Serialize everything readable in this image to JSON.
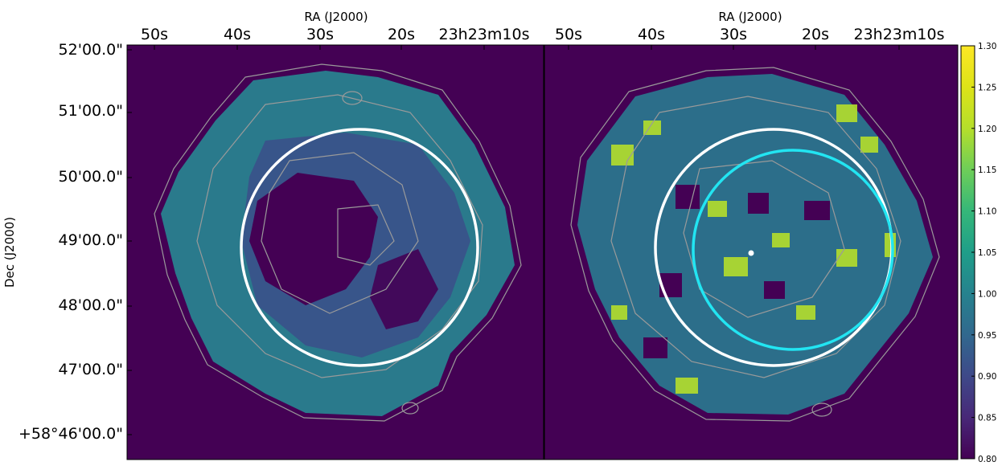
{
  "chart_data": [
    {
      "type": "heatmap",
      "panel": "left",
      "xlabel": "RA (J2000)",
      "ylabel": "Dec (J2000)",
      "x_ticks": [
        "50s",
        "40s",
        "30s",
        "20s",
        "23h23m10s"
      ],
      "y_ticks": [
        "52'00.0\"",
        "51'00.0\"",
        "50'00.0\"",
        "49'00.0\"",
        "48'00.0\"",
        "47'00.0\"",
        "+58°46'00.0\""
      ],
      "overlays": [
        {
          "shape": "circle",
          "color": "#ffffff"
        }
      ],
      "contours": {
        "color": "#9a9a9a"
      }
    },
    {
      "type": "heatmap",
      "panel": "right",
      "xlabel": "RA (J2000)",
      "x_ticks": [
        "50s",
        "40s",
        "30s",
        "20s",
        "23h23m10s"
      ],
      "overlays": [
        {
          "shape": "circle",
          "color": "#ffffff"
        },
        {
          "shape": "circle",
          "color": "#22e5f2"
        },
        {
          "shape": "point",
          "color": "#ffffff"
        }
      ],
      "contours": {
        "color": "#9a9a9a"
      },
      "colorbar": {
        "colormap": "viridis",
        "vmin": 0.8,
        "vmax": 1.3,
        "ticks": [
          "1.30",
          "1.25",
          "1.20",
          "1.15",
          "1.10",
          "1.05",
          "1.00",
          "0.95",
          "0.90",
          "0.85",
          "0.80"
        ]
      }
    }
  ]
}
